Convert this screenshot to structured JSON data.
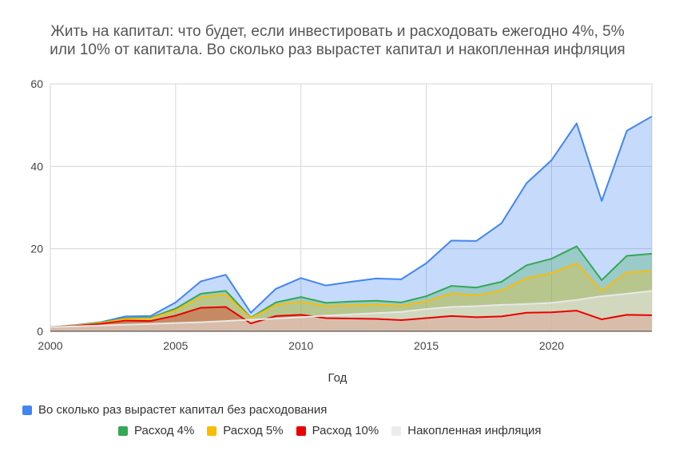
{
  "chart_data": {
    "type": "area",
    "title_line1": "Жить на капитал: что будет, если инвестировать и расходовать ежегодно 4%, 5%",
    "title_line2": "или 10% от капитала. Во сколько раз вырастет капитал и накопленная инфляция",
    "xlabel": "Год",
    "ylabel": "",
    "xlim": [
      2000,
      2024
    ],
    "ylim": [
      0,
      60
    ],
    "x_ticks": [
      2000,
      2005,
      2010,
      2015,
      2020
    ],
    "y_ticks": [
      0,
      20,
      40,
      60
    ],
    "grid": true,
    "legend_position": "bottom",
    "x": [
      2000,
      2001,
      2002,
      2003,
      2004,
      2005,
      2006,
      2007,
      2008,
      2009,
      2010,
      2011,
      2012,
      2013,
      2014,
      2015,
      2016,
      2017,
      2018,
      2019,
      2020,
      2021,
      2022,
      2023,
      2024
    ],
    "series": [
      {
        "name": "Во сколько раз вырастет капитал без расходования",
        "color": "#4285f4",
        "values": [
          1.0,
          1.5,
          2.2,
          3.6,
          3.7,
          7.0,
          12.1,
          13.7,
          4.5,
          10.3,
          12.9,
          11.1,
          12.0,
          12.8,
          12.6,
          16.5,
          22.0,
          21.9,
          26.2,
          35.9,
          41.5,
          50.4,
          31.6,
          48.6,
          52.1
        ]
      },
      {
        "name": "Расход 4%",
        "color": "#34a853",
        "values": [
          1.0,
          1.4,
          2.1,
          3.2,
          3.3,
          5.5,
          9.1,
          9.8,
          3.3,
          7.0,
          8.3,
          6.9,
          7.2,
          7.4,
          7.0,
          8.5,
          11.0,
          10.6,
          12.0,
          16.0,
          17.6,
          20.6,
          12.4,
          18.3,
          18.8
        ]
      },
      {
        "name": "Расход 5%",
        "color": "#fbbc04",
        "values": [
          1.0,
          1.4,
          2.0,
          3.0,
          3.1,
          5.1,
          8.3,
          8.9,
          3.2,
          6.4,
          7.2,
          6.1,
          6.3,
          6.5,
          6.2,
          7.3,
          9.2,
          8.7,
          9.9,
          12.9,
          14.1,
          16.5,
          9.8,
          14.3,
          14.6
        ]
      },
      {
        "name": "Расход 10%",
        "color": "#ea0000",
        "values": [
          1.0,
          1.3,
          1.8,
          2.6,
          2.5,
          3.8,
          5.7,
          5.9,
          1.9,
          3.7,
          4.0,
          3.2,
          3.1,
          3.0,
          2.7,
          3.2,
          3.7,
          3.4,
          3.6,
          4.5,
          4.6,
          5.0,
          2.9,
          4.0,
          3.9
        ]
      },
      {
        "name": "Накопленная инфляция",
        "color": "#e8e8e8",
        "values": [
          1.0,
          1.2,
          1.4,
          1.6,
          1.8,
          2.0,
          2.2,
          2.5,
          2.8,
          3.1,
          3.4,
          3.8,
          4.1,
          4.4,
          4.7,
          5.4,
          5.9,
          6.1,
          6.4,
          6.6,
          6.9,
          7.6,
          8.5,
          9.1,
          9.8
        ]
      }
    ]
  }
}
